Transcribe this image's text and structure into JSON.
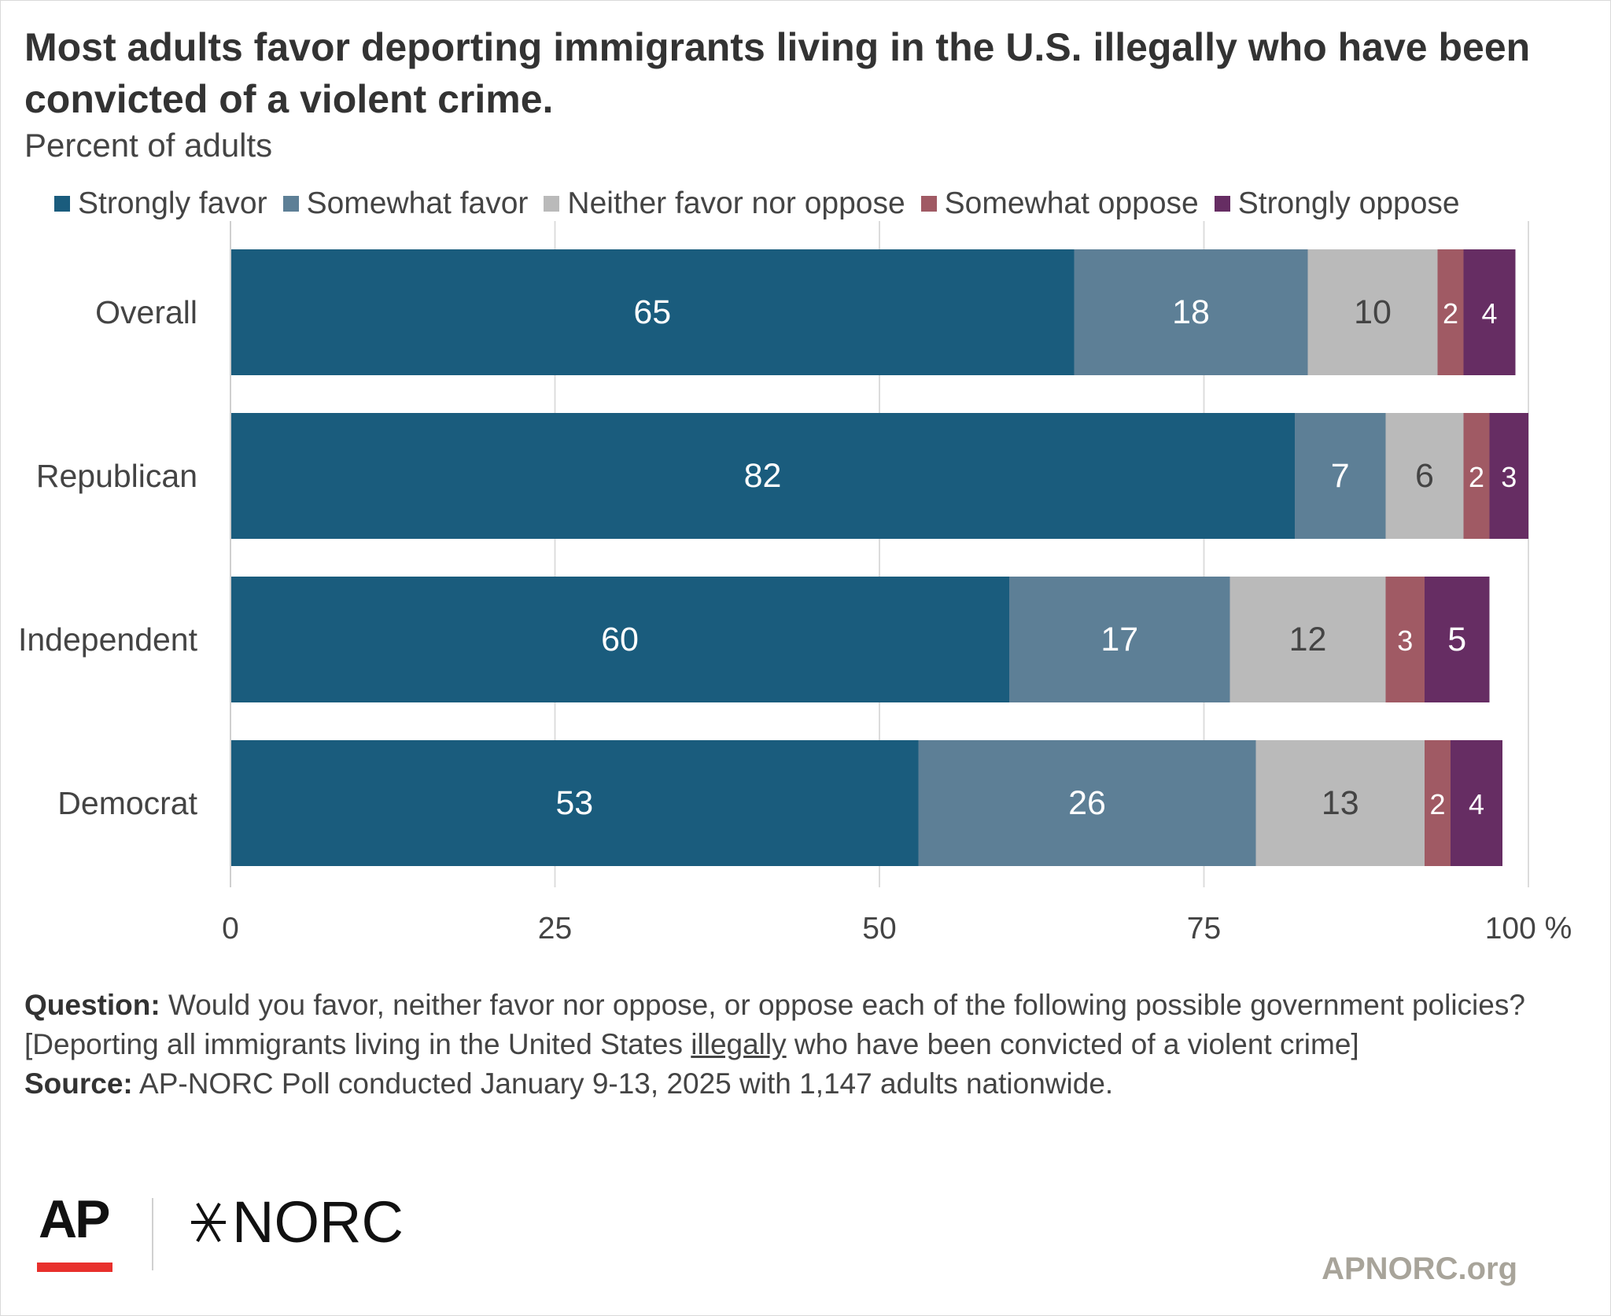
{
  "title": "Most adults favor deporting immigrants living in the U.S. illegally who have been convicted of a violent crime.",
  "subtitle": "Percent of adults",
  "chart_data": {
    "type": "bar",
    "orientation": "horizontal",
    "stacked": true,
    "categories": [
      "Overall",
      "Republican",
      "Independent",
      "Democrat"
    ],
    "series": [
      {
        "name": "Strongly favor",
        "color": "#1a5c7d",
        "label_color": "#ffffff",
        "values": [
          65,
          82,
          60,
          53
        ]
      },
      {
        "name": "Somewhat favor",
        "color": "#5d7f96",
        "label_color": "#ffffff",
        "values": [
          18,
          7,
          17,
          26
        ]
      },
      {
        "name": "Neither favor nor oppose",
        "color": "#bababa",
        "label_color": "#444444",
        "values": [
          10,
          6,
          12,
          13
        ]
      },
      {
        "name": "Somewhat oppose",
        "color": "#a05a64",
        "label_color": "#ffffff",
        "values": [
          2,
          2,
          3,
          2
        ]
      },
      {
        "name": "Strongly oppose",
        "color": "#662d63",
        "label_color": "#ffffff",
        "values": [
          4,
          3,
          5,
          4
        ]
      }
    ],
    "xlim": [
      0,
      100
    ],
    "xticks": [
      "0",
      "25",
      "50",
      "75",
      "100 %"
    ],
    "grid": true,
    "legend_position": "top"
  },
  "footer": {
    "question_label": "Question:",
    "question_pre": "Would you favor, neither favor nor oppose, or oppose each of the following possible government policies? [Deporting all immigrants living in the United States",
    "question_underlined": "illegally",
    "question_post": "who have been convicted of a violent crime]",
    "source_label": "Source:",
    "source_text": "AP-NORC Poll conducted January 9-13, 2025 with 1,147 adults nationwide."
  },
  "logos": {
    "ap": "AP",
    "norc": "NORC"
  },
  "site": "APNORC.org"
}
